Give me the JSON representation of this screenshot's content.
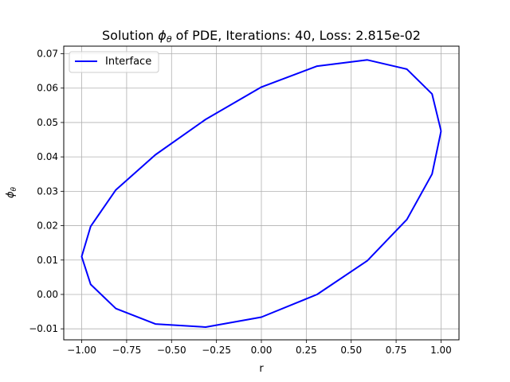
{
  "chart_data": {
    "type": "line",
    "title_prefix": "Solution ",
    "title_symbol": "ϕ",
    "title_subscript": "θ",
    "title_suffix": " of PDE, Iterations: 40, Loss: 2.815e-02",
    "xlabel": "r",
    "ylabel_symbol": "ϕ",
    "ylabel_subscript": "θ",
    "xlim": [
      -1.1,
      1.1
    ],
    "ylim": [
      -0.0132,
      0.0722
    ],
    "x_ticks": [
      -1.0,
      -0.75,
      -0.5,
      -0.25,
      0.0,
      0.25,
      0.5,
      0.75,
      1.0
    ],
    "x_tick_labels": [
      "−1.00",
      "−0.75",
      "−0.50",
      "−0.25",
      "0.00",
      "0.25",
      "0.50",
      "0.75",
      "1.00"
    ],
    "y_ticks": [
      -0.01,
      0.0,
      0.01,
      0.02,
      0.03,
      0.04,
      0.05,
      0.06,
      0.07
    ],
    "y_tick_labels": [
      "−0.01",
      "0.00",
      "0.01",
      "0.02",
      "0.03",
      "0.04",
      "0.05",
      "0.06",
      "0.07"
    ],
    "grid": true,
    "legend_position": "top-left",
    "series": [
      {
        "name": "Interface",
        "color": "#0000ff",
        "x": [
          1.0,
          0.95,
          0.81,
          0.59,
          0.31,
          0.0,
          -0.31,
          -0.59,
          -0.81,
          -0.95,
          -1.0,
          -0.95,
          -0.81,
          -0.59,
          -0.31,
          0.0,
          0.31,
          0.59,
          0.81,
          0.95,
          1.0
        ],
        "y": [
          0.0475,
          0.035,
          0.0218,
          0.0098,
          0.0,
          -0.0066,
          -0.0095,
          -0.0086,
          -0.0041,
          0.0029,
          0.011,
          0.0198,
          0.0304,
          0.0406,
          0.0509,
          0.0603,
          0.0664,
          0.0682,
          0.0655,
          0.0583,
          0.0475
        ]
      }
    ]
  }
}
